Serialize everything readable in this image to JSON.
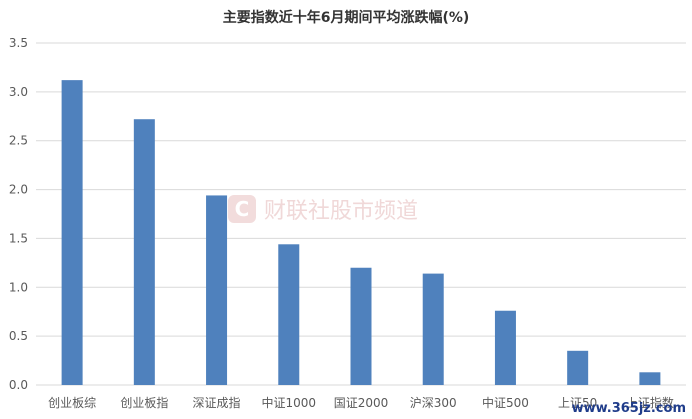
{
  "colors": {
    "bar": "#4f81bd",
    "grid": "#d9d9d9",
    "watermark": "#f0d8d8"
  },
  "watermark": {
    "text": "财联社股市频道",
    "corner_text": "www.365jz.com"
  },
  "chart_data": {
    "type": "bar",
    "title": "主要指数近十年6月期间平均涨跌幅(%)",
    "xlabel": "",
    "ylabel": "",
    "ylim": [
      0,
      3.5
    ],
    "yticks": [
      "0.0",
      "0.5",
      "1.0",
      "1.5",
      "2.0",
      "2.5",
      "3.0",
      "3.5"
    ],
    "grid": true,
    "categories": [
      "创业板综",
      "创业板指",
      "深证成指",
      "中证1000",
      "国证2000",
      "沪深300",
      "中证500",
      "上证50",
      "上证指数"
    ],
    "values": [
      3.12,
      2.72,
      1.94,
      1.44,
      1.2,
      1.14,
      0.76,
      0.35,
      0.13
    ]
  }
}
